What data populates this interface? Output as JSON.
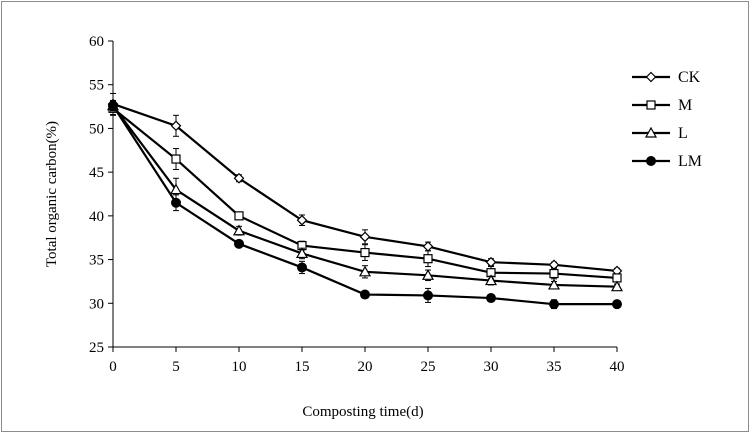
{
  "chart_data": {
    "type": "line",
    "title": "",
    "xlabel": "Composting time(d)",
    "ylabel": "Total organic carbon(%)",
    "xlim": [
      0,
      40
    ],
    "ylim": [
      25,
      60
    ],
    "x": [
      0,
      5,
      10,
      15,
      20,
      25,
      30,
      35,
      40
    ],
    "x_ticks": [
      "0",
      "5",
      "10",
      "15",
      "20",
      "25",
      "30",
      "35",
      "40"
    ],
    "y_ticks": [
      "25",
      "30",
      "35",
      "40",
      "45",
      "50",
      "55",
      "60"
    ],
    "grid": false,
    "legend_position": "right",
    "series": [
      {
        "name": "CK",
        "marker": "diamond-open",
        "values": [
          52.8,
          50.3,
          44.3,
          39.5,
          37.6,
          36.5,
          34.7,
          34.4,
          33.7
        ],
        "errors": [
          1.2,
          1.2,
          0.4,
          0.6,
          0.8,
          0.5,
          0.4,
          0.3,
          0.3
        ]
      },
      {
        "name": "M",
        "marker": "square-open",
        "values": [
          52.3,
          46.5,
          40.0,
          36.6,
          35.8,
          35.1,
          33.5,
          33.4,
          32.9
        ],
        "errors": [
          0.8,
          1.2,
          0.4,
          0.5,
          0.9,
          0.9,
          0.7,
          0.6,
          0.4
        ]
      },
      {
        "name": "L",
        "marker": "triangle-open",
        "values": [
          52.6,
          43.0,
          38.3,
          35.7,
          33.6,
          33.2,
          32.6,
          32.1,
          31.9
        ],
        "errors": [
          0.6,
          1.3,
          0.5,
          0.6,
          0.7,
          0.6,
          0.5,
          0.4,
          0.3
        ]
      },
      {
        "name": "LM",
        "marker": "circle-filled",
        "values": [
          52.6,
          41.5,
          36.8,
          34.1,
          31.0,
          30.9,
          30.6,
          29.9,
          29.9
        ],
        "errors": [
          0.5,
          0.9,
          0.3,
          0.7,
          0.2,
          0.8,
          0.4,
          0.5,
          0.2
        ]
      }
    ]
  }
}
